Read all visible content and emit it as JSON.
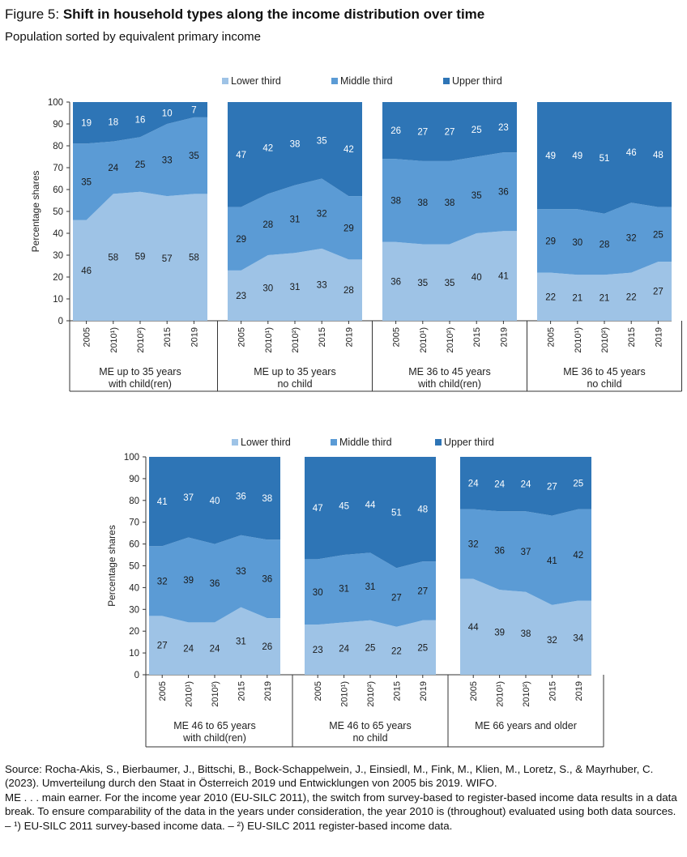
{
  "figure": {
    "title_prefix": "Figure 5: ",
    "title": "Shift in household types along the income distribution over time",
    "subtitle": "Population sorted by equivalent primary income"
  },
  "colors": {
    "lower": "#9ec3e6",
    "middle": "#5b9bd5",
    "upper": "#2e75b6"
  },
  "source": {
    "lines": [
      "Source: Rocha-Akis, S., Bierbaumer, J., Bittschi, B., Bock-Schappelwein, J., Einsiedl, M., Fink, M., Klien, M., Loretz, S., & Mayrhuber, C. (2023). Umverteilung durch den Staat in Österreich 2019 und Entwicklungen von 2005 bis 2019. WIFO.",
      "ME . . . main earner. For the income year 2010 (EU-SILC 2011), the switch from survey-based to register-based income data results in a data break. To ensure comparability of the data in the years under consideration, the year 2010 is (throughout) evaluated using both data sources. – ¹) EU-SILC 2011 survey-based income data. – ²) EU-SILC 2011 register-based income data."
    ]
  },
  "chart_data": [
    {
      "type": "area",
      "stacked": true,
      "ylabel": "Percentage shares",
      "ylim": [
        0,
        100
      ],
      "yticks": [
        0,
        10,
        20,
        30,
        40,
        50,
        60,
        70,
        80,
        90,
        100
      ],
      "legend": {
        "position": "top",
        "entries": [
          "Lower third",
          "Middle third",
          "Upper third"
        ]
      },
      "x": [
        "2005",
        "2010¹)",
        "2010²)",
        "2015",
        "2019"
      ],
      "panels": [
        {
          "label": [
            "ME up to 35 years",
            "with child(ren)"
          ],
          "series": [
            {
              "name": "Lower third",
              "values": [
                46,
                58,
                59,
                57,
                58
              ]
            },
            {
              "name": "Middle third",
              "values": [
                35,
                24,
                25,
                33,
                35
              ]
            },
            {
              "name": "Upper third",
              "values": [
                19,
                18,
                16,
                10,
                7
              ]
            }
          ]
        },
        {
          "label": [
            "ME up to 35 years",
            "no child"
          ],
          "series": [
            {
              "name": "Lower third",
              "values": [
                23,
                30,
                31,
                33,
                28
              ]
            },
            {
              "name": "Middle third",
              "values": [
                29,
                28,
                31,
                32,
                29
              ]
            },
            {
              "name": "Upper third",
              "values": [
                47,
                42,
                38,
                35,
                42
              ]
            }
          ]
        },
        {
          "label": [
            "ME 36 to 45 years",
            "with child(ren)"
          ],
          "series": [
            {
              "name": "Lower third",
              "values": [
                36,
                35,
                35,
                40,
                41
              ]
            },
            {
              "name": "Middle third",
              "values": [
                38,
                38,
                38,
                35,
                36
              ]
            },
            {
              "name": "Upper third",
              "values": [
                26,
                27,
                27,
                25,
                23
              ]
            }
          ]
        },
        {
          "label": [
            "ME 36 to 45 years",
            "no child"
          ],
          "series": [
            {
              "name": "Lower third",
              "values": [
                22,
                21,
                21,
                22,
                27
              ]
            },
            {
              "name": "Middle third",
              "values": [
                29,
                30,
                28,
                32,
                25
              ]
            },
            {
              "name": "Upper third",
              "values": [
                49,
                49,
                51,
                46,
                48
              ]
            }
          ]
        }
      ]
    },
    {
      "type": "area",
      "stacked": true,
      "ylabel": "Percentage shares",
      "ylim": [
        0,
        100
      ],
      "yticks": [
        0,
        10,
        20,
        30,
        40,
        50,
        60,
        70,
        80,
        90,
        100
      ],
      "legend": {
        "position": "top",
        "entries": [
          "Lower third",
          "Middle third",
          "Upper third"
        ]
      },
      "x": [
        "2005",
        "2010¹)",
        "2010²)",
        "2015",
        "2019"
      ],
      "panels": [
        {
          "label": [
            "ME 46 to 65 years",
            "with child(ren)"
          ],
          "series": [
            {
              "name": "Lower third",
              "values": [
                27,
                24,
                24,
                31,
                26
              ]
            },
            {
              "name": "Middle third",
              "values": [
                32,
                39,
                36,
                33,
                36
              ]
            },
            {
              "name": "Upper third",
              "values": [
                41,
                37,
                40,
                36,
                38
              ]
            }
          ]
        },
        {
          "label": [
            "ME 46 to 65 years",
            "no child"
          ],
          "series": [
            {
              "name": "Lower third",
              "values": [
                23,
                24,
                25,
                22,
                25
              ]
            },
            {
              "name": "Middle third",
              "values": [
                30,
                31,
                31,
                27,
                27
              ]
            },
            {
              "name": "Upper third",
              "values": [
                47,
                45,
                44,
                51,
                48
              ]
            }
          ]
        },
        {
          "label": [
            "ME 66 years and older"
          ],
          "series": [
            {
              "name": "Lower third",
              "values": [
                44,
                39,
                38,
                32,
                34
              ]
            },
            {
              "name": "Middle third",
              "values": [
                32,
                36,
                37,
                41,
                42
              ]
            },
            {
              "name": "Upper third",
              "values": [
                24,
                24,
                24,
                27,
                25
              ]
            }
          ]
        }
      ]
    }
  ]
}
